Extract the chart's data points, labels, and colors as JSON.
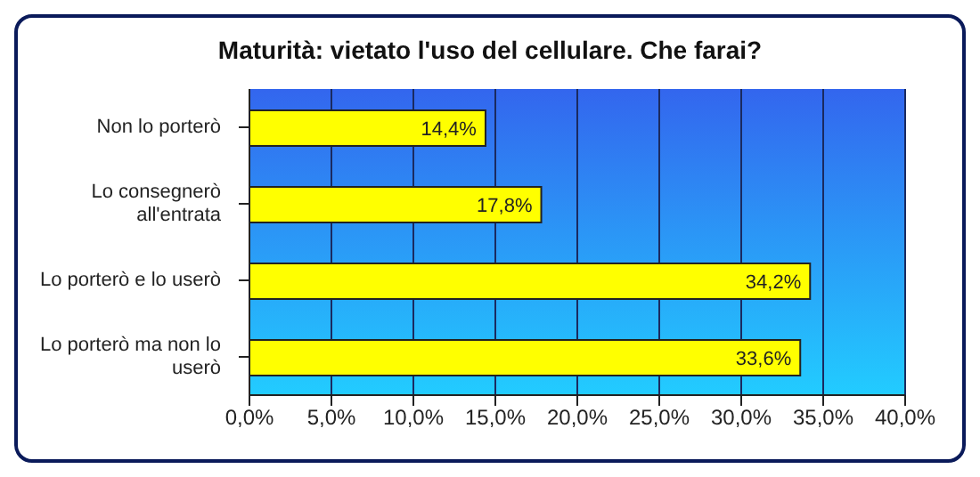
{
  "chart_data": {
    "type": "bar",
    "orientation": "horizontal",
    "title": "Maturità: vietato l'uso del cellulare. Che farai?",
    "categories": [
      "Non lo porterò",
      "Lo consegnerò all'entrata",
      "Lo porterò e lo userò",
      "Lo porterò ma non lo userò"
    ],
    "values": [
      14.4,
      17.8,
      34.2,
      33.6
    ],
    "value_labels": [
      "14,4%",
      "17,8%",
      "34,2%",
      "33,6%"
    ],
    "color": "#ffff00",
    "xlim": [
      0,
      40
    ],
    "xticks": [
      {
        "value": 0,
        "label": "0,0%"
      },
      {
        "value": 5,
        "label": "5,0%"
      },
      {
        "value": 10,
        "label": "10,0%"
      },
      {
        "value": 15,
        "label": "15,0%"
      },
      {
        "value": 20,
        "label": "20,0%"
      },
      {
        "value": 25,
        "label": "25,0%"
      },
      {
        "value": 30,
        "label": "30,0%"
      },
      {
        "value": 35,
        "label": "35,0%"
      },
      {
        "value": 40,
        "label": "40,0%"
      }
    ],
    "grid": "x",
    "legend": false
  }
}
